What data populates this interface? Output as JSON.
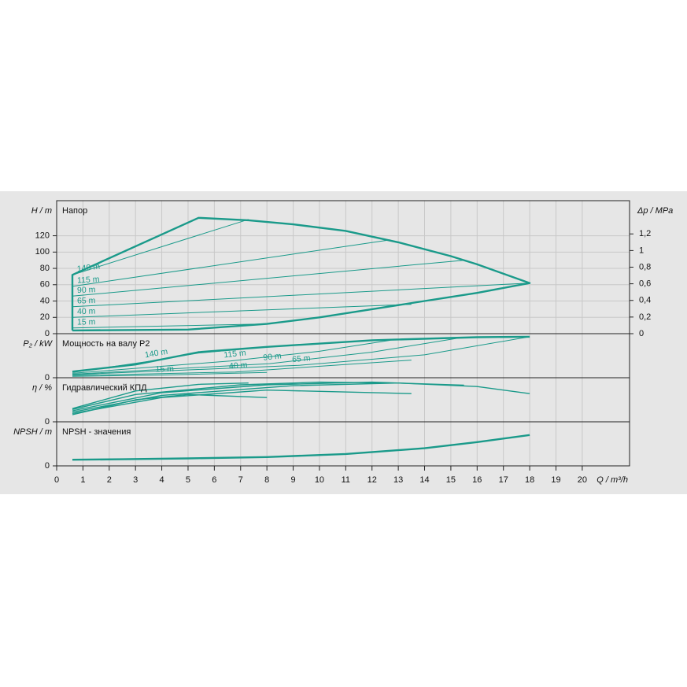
{
  "chart_data": [
    {
      "type": "line",
      "title": "Напор",
      "ylabel": "H / m",
      "y2label": "Δp / MPa",
      "color": "#1a9a8a",
      "xlim": [
        0,
        21.8
      ],
      "ylim": [
        0,
        163
      ],
      "yticks": [
        0,
        20,
        40,
        60,
        80,
        100,
        120
      ],
      "y2lim": [
        0,
        1.6
      ],
      "y2ticks": [
        0,
        {
          "value": 0.2,
          "label": "0,2"
        },
        {
          "value": 0.4,
          "label": "0,4"
        },
        {
          "value": 0.6,
          "label": "0,6"
        },
        {
          "value": 0.8,
          "label": "0,8"
        },
        1,
        {
          "value": 1.2,
          "label": "1,2"
        }
      ],
      "grid": true,
      "series": [
        {
          "x": [
            0.6,
            0.6,
            5.4,
            7.3,
            9,
            11,
            13,
            15,
            16,
            18,
            16,
            14,
            12,
            10,
            8,
            5,
            0.6
          ],
          "values": [
            4,
            72,
            142,
            139,
            134,
            126,
            112,
            95,
            85,
            62,
            50,
            40,
            30,
            20,
            12,
            5,
            4
          ]
        },
        {
          "name": "140 m",
          "x": [
            0.6,
            7.3
          ],
          "values": [
            72,
            140
          ]
        },
        {
          "name": "115 m",
          "x": [
            0.6,
            12.7
          ],
          "values": [
            58,
            115
          ]
        },
        {
          "name": "90 m",
          "x": [
            0.6,
            15.5
          ],
          "values": [
            46,
            90
          ]
        },
        {
          "name": "65 m",
          "x": [
            0.6,
            18
          ],
          "values": [
            33,
            62
          ]
        },
        {
          "name": "40 m",
          "x": [
            0.6,
            13.5
          ],
          "values": [
            20,
            36
          ]
        },
        {
          "name": "15 m",
          "x": [
            0.6,
            8
          ],
          "values": [
            7,
            12
          ]
        }
      ]
    },
    {
      "type": "line",
      "title": "Мощность на валу P2",
      "ylabel": "P₂ / kW",
      "color": "#1a9a8a",
      "xlim": [
        0,
        21.8
      ],
      "ylim": [
        0,
        1
      ],
      "yticks": [
        0
      ],
      "grid": true,
      "series": [
        {
          "x": [
            0.6,
            3,
            5.4,
            8,
            12,
            16,
            18
          ],
          "values": [
            0.14,
            0.3,
            0.58,
            0.7,
            0.85,
            0.92,
            0.93
          ]
        },
        {
          "name": "140 m",
          "x": [
            0.6,
            3.6,
            5.4,
            7.3
          ],
          "values": [
            0.12,
            0.38,
            0.56,
            0.66
          ]
        },
        {
          "name": "115 m",
          "x": [
            0.6,
            6.6,
            10,
            12.7
          ],
          "values": [
            0.1,
            0.38,
            0.6,
            0.85
          ]
        },
        {
          "name": "90 m",
          "x": [
            0.6,
            8.1,
            12,
            15.5
          ],
          "values": [
            0.08,
            0.32,
            0.58,
            0.92
          ]
        },
        {
          "name": "65 m",
          "x": [
            0.6,
            9.2,
            14,
            18
          ],
          "values": [
            0.07,
            0.28,
            0.52,
            0.93
          ]
        },
        {
          "name": "40 m",
          "x": [
            0.6,
            6.8,
            13.5
          ],
          "values": [
            0.05,
            0.13,
            0.4
          ]
        },
        {
          "name": "15 m",
          "x": [
            0.6,
            4,
            8
          ],
          "values": [
            0.03,
            0.06,
            0.12
          ]
        }
      ]
    },
    {
      "type": "line",
      "title": "Гидравлический КПД",
      "ylabel": "η / %",
      "color": "#1a9a8a",
      "xlim": [
        0,
        21.8
      ],
      "ylim": [
        0,
        1
      ],
      "yticks": [
        0
      ],
      "grid": true,
      "series": [
        {
          "x": [
            0.6,
            3,
            5.4,
            7.3
          ],
          "values": [
            0.3,
            0.7,
            0.85,
            0.88
          ]
        },
        {
          "x": [
            0.6,
            3,
            7,
            10,
            12.7
          ],
          "values": [
            0.28,
            0.62,
            0.84,
            0.9,
            0.88
          ]
        },
        {
          "x": [
            0.6,
            4,
            8,
            12,
            15.5
          ],
          "values": [
            0.25,
            0.66,
            0.84,
            0.9,
            0.83
          ]
        },
        {
          "x": [
            0.6,
            4,
            9,
            13,
            16,
            18
          ],
          "values": [
            0.22,
            0.6,
            0.82,
            0.88,
            0.8,
            0.64
          ]
        },
        {
          "x": [
            0.6,
            4,
            8,
            13.5
          ],
          "values": [
            0.19,
            0.55,
            0.72,
            0.64
          ]
        },
        {
          "x": [
            0.6,
            3,
            5,
            8
          ],
          "values": [
            0.16,
            0.5,
            0.62,
            0.55
          ]
        }
      ]
    },
    {
      "type": "line",
      "title": "NPSH - значения",
      "ylabel": "NPSH / m",
      "xlabel": "Q / m³/h",
      "color": "#1a9a8a",
      "xlim": [
        0,
        21.8
      ],
      "ylim": [
        0,
        1
      ],
      "yticks": [
        0
      ],
      "grid": true,
      "xticks": [
        0,
        1,
        2,
        3,
        4,
        5,
        6,
        7,
        8,
        9,
        10,
        11,
        12,
        13,
        14,
        15,
        16,
        17,
        18,
        19,
        20
      ],
      "series": [
        {
          "x": [
            0.6,
            2.5,
            5,
            8,
            11,
            14,
            16,
            18
          ],
          "values": [
            0.14,
            0.15,
            0.17,
            0.2,
            0.27,
            0.4,
            0.54,
            0.7
          ]
        }
      ]
    }
  ]
}
